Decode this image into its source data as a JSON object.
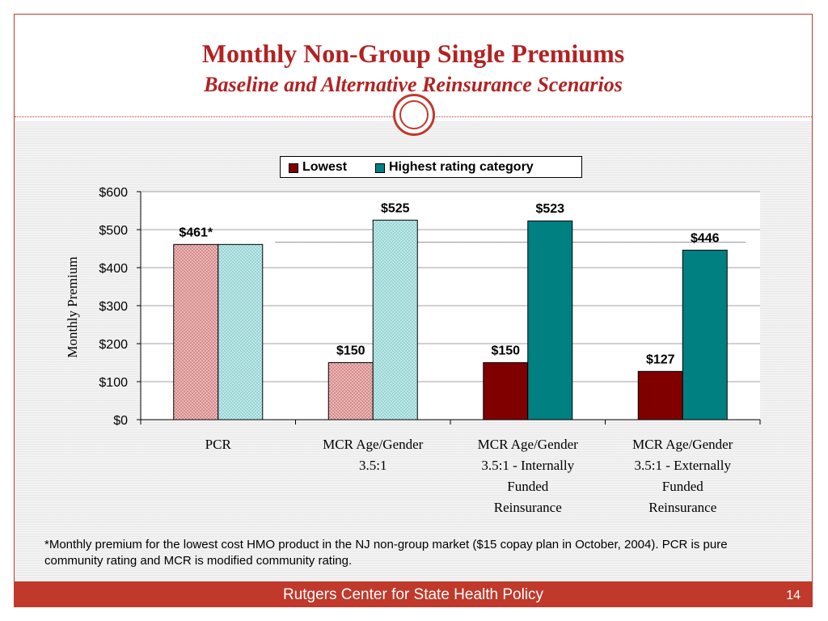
{
  "header": {
    "title": "Monthly Non-Group Single Premiums",
    "subtitle": "Baseline and Alternative Reinsurance Scenarios"
  },
  "chart_data": {
    "type": "bar",
    "categories": [
      "PCR",
      "MCR Age/Gender 3.5:1",
      "MCR Age/Gender 3.5:1 - Internally Funded Reinsurance",
      "MCR Age/Gender 3.5:1 - Externally Funded Reinsurance"
    ],
    "category_lines": [
      [
        "PCR"
      ],
      [
        "MCR Age/Gender",
        "3.5:1"
      ],
      [
        "MCR Age/Gender",
        "3.5:1 - Internally",
        "Funded",
        "Reinsurance"
      ],
      [
        "MCR Age/Gender",
        "3.5:1 - Externally",
        "Funded",
        "Reinsurance"
      ]
    ],
    "series": [
      {
        "name": "Lowest",
        "values": [
          461,
          150,
          150,
          127
        ],
        "labels": [
          "$461*",
          "$150",
          "$150",
          "$127"
        ],
        "color": "#800000",
        "hatched": [
          true,
          true,
          false,
          false
        ],
        "hatch_color": "#d98c8c"
      },
      {
        "name": "Highest rating category",
        "values": [
          461,
          525,
          523,
          446
        ],
        "labels": [
          "",
          "$525",
          "$523",
          "$446"
        ],
        "color": "#008080",
        "hatched": [
          true,
          true,
          false,
          false
        ],
        "hatch_color": "#99d6d6"
      }
    ],
    "ylabel": "Monthly Premium",
    "ylim": [
      0,
      600
    ],
    "yticks": [
      0,
      100,
      200,
      300,
      400,
      500,
      600
    ],
    "ytick_labels": [
      "$0",
      "$100",
      "$200",
      "$300",
      "$400",
      "$500",
      "$600"
    ],
    "reference_line": 467,
    "grid": true,
    "legend_position": "top"
  },
  "footnote": "*Monthly premium for the lowest cost HMO product in the NJ non-group market ($15 copay plan in October, 2004).  PCR is pure community rating and MCR is modified community rating.",
  "footer": {
    "text": "Rutgers Center for State Health Policy",
    "page": "14"
  }
}
